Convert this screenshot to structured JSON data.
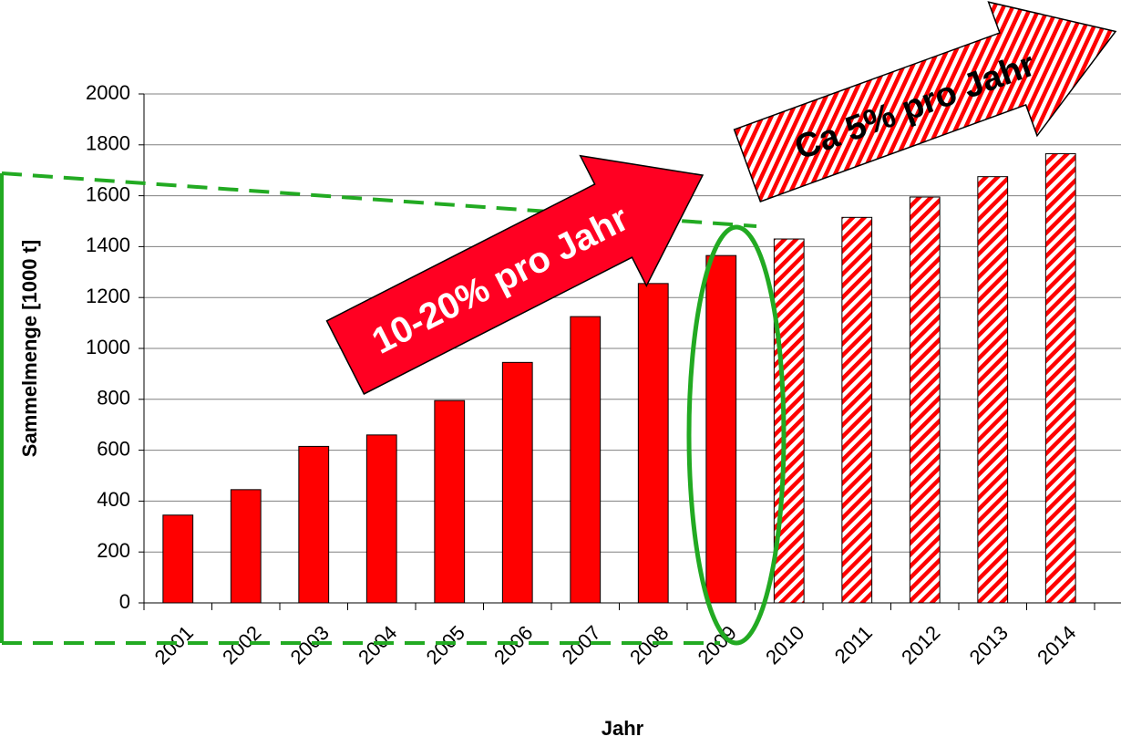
{
  "chart_data": {
    "type": "bar",
    "x_label": "Jahr",
    "y_label": "Sammelmenge [1000 t]",
    "categories": [
      "2001",
      "2002",
      "2003",
      "2004",
      "2005",
      "2006",
      "2007",
      "2008",
      "2009",
      "2010",
      "2011",
      "2012",
      "2013",
      "2014"
    ],
    "series": [
      {
        "color": "#ff0000",
        "values": [
          345,
          445,
          615,
          660,
          795,
          945,
          1125,
          1255,
          1365,
          null,
          null,
          null,
          null,
          null
        ]
      },
      {
        "color": "#ff0000",
        "pattern": "hatch",
        "values": [
          null,
          null,
          null,
          null,
          null,
          null,
          null,
          null,
          null,
          1430,
          1515,
          1595,
          1675,
          1765
        ]
      }
    ],
    "annotations": [
      "10-20% pro Jahr",
      "Ca 5% pro Jahr"
    ],
    "ylim": [
      0,
      2000
    ],
    "yticks": [
      0,
      200,
      400,
      600,
      800,
      1000,
      1200,
      1400,
      1600,
      1800,
      2000
    ],
    "grid": true
  }
}
